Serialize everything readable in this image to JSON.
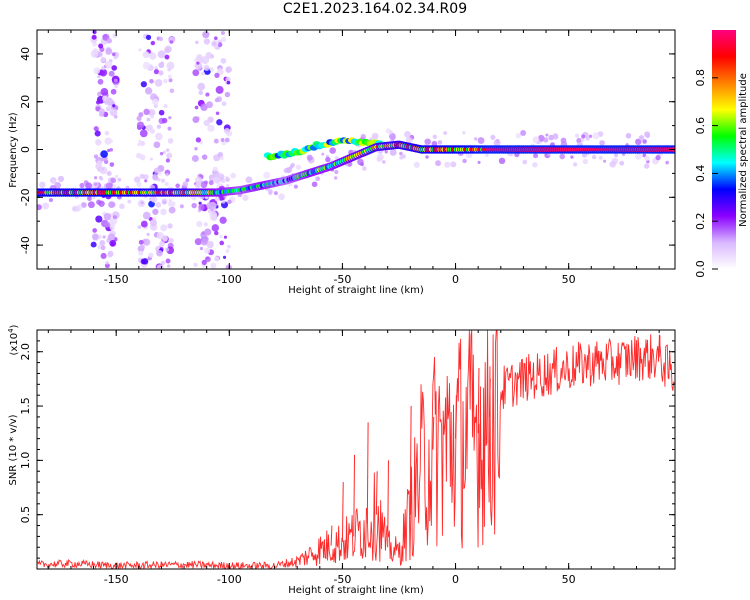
{
  "title": "C2E1.2023.164.02.34.R09",
  "chart_data": [
    {
      "type": "heatmap",
      "xlabel": "Height of straight line (km)",
      "ylabel": "Frequency (Hz)",
      "xlim": [
        -185,
        97
      ],
      "ylim": [
        -50,
        50
      ],
      "x_ticks": [
        "-150",
        "-100",
        "-50",
        "0",
        "50"
      ],
      "y_ticks": [
        "-40",
        "-20",
        "0",
        "20",
        "40"
      ],
      "colorbar": {
        "label": "Normalized spectral amplitude",
        "range": [
          0,
          1
        ],
        "ticks": [
          "0.0",
          "0.2",
          "0.4",
          "0.6",
          "0.8"
        ],
        "colors": [
          "#ffffff",
          "#d9b8ff",
          "#8a00ff",
          "#0000ff",
          "#00ffff",
          "#00ff00",
          "#ffff00",
          "#ff8000",
          "#ff0000",
          "#ff0080"
        ]
      },
      "ridge": [
        {
          "x": -185,
          "y": -18,
          "amp": 0.95
        },
        {
          "x": -160,
          "y": -18,
          "amp": 0.95
        },
        {
          "x": -140,
          "y": -18,
          "amp": 0.9
        },
        {
          "x": -120,
          "y": -18,
          "amp": 0.85
        },
        {
          "x": -105,
          "y": -18,
          "amp": 0.6
        },
        {
          "x": -95,
          "y": -17,
          "amp": 0.5
        },
        {
          "x": -85,
          "y": -15,
          "amp": 0.6
        },
        {
          "x": -75,
          "y": -13,
          "amp": 0.45
        },
        {
          "x": -65,
          "y": -10,
          "amp": 0.6
        },
        {
          "x": -55,
          "y": -7,
          "amp": 0.6
        },
        {
          "x": -45,
          "y": -3,
          "amp": 0.7
        },
        {
          "x": -35,
          "y": 1,
          "amp": 0.8
        },
        {
          "x": -25,
          "y": 2,
          "amp": 0.85
        },
        {
          "x": -15,
          "y": 0,
          "amp": 0.9
        },
        {
          "x": 0,
          "y": 0,
          "amp": 0.95
        },
        {
          "x": 15,
          "y": 0,
          "amp": 1.0
        },
        {
          "x": 97,
          "y": 0,
          "amp": 1.0
        }
      ],
      "upper_branch": [
        {
          "x": -83,
          "y": -3,
          "amp": 0.5
        },
        {
          "x": -70,
          "y": -1,
          "amp": 0.55
        },
        {
          "x": -60,
          "y": 2,
          "amp": 0.55
        },
        {
          "x": -50,
          "y": 4,
          "amp": 0.6
        },
        {
          "x": -40,
          "y": 3,
          "amp": 0.55
        },
        {
          "x": -30,
          "y": 2,
          "amp": 0.6
        }
      ],
      "noise_bands_x": [
        [
          -160,
          -150
        ],
        [
          -140,
          -125
        ],
        [
          -115,
          -100
        ]
      ]
    },
    {
      "type": "line",
      "xlabel": "Height of straight line (km)",
      "ylabel": "SNR (10 * v/v)",
      "multiplier_label": "(x10",
      "multiplier_exponent": "4",
      "multiplier_close": ")",
      "xlim": [
        -185,
        97
      ],
      "ylim": [
        0,
        22000
      ],
      "x_ticks": [
        "-150",
        "-100",
        "-50",
        "0",
        "50"
      ],
      "y_ticks": [
        "0.5",
        "1.0",
        "1.5",
        "2.0"
      ],
      "color": "#ff2a2a",
      "envelope": [
        {
          "x": -185,
          "y": 400
        },
        {
          "x": -170,
          "y": 500
        },
        {
          "x": -150,
          "y": 300
        },
        {
          "x": -120,
          "y": 400
        },
        {
          "x": -100,
          "y": 300
        },
        {
          "x": -80,
          "y": 300
        },
        {
          "x": -70,
          "y": 700
        },
        {
          "x": -60,
          "y": 1800
        },
        {
          "x": -50,
          "y": 2500
        },
        {
          "x": -45,
          "y": 3000
        },
        {
          "x": -40,
          "y": 4000
        },
        {
          "x": -35,
          "y": 5000
        },
        {
          "x": -30,
          "y": 2000
        },
        {
          "x": -25,
          "y": 1500
        },
        {
          "x": -20,
          "y": 5000
        },
        {
          "x": -15,
          "y": 9500
        },
        {
          "x": -10,
          "y": 11000
        },
        {
          "x": -5,
          "y": 11500
        },
        {
          "x": 0,
          "y": 12000
        },
        {
          "x": 5,
          "y": 12500
        },
        {
          "x": 10,
          "y": 12500
        },
        {
          "x": 15,
          "y": 14000
        },
        {
          "x": 20,
          "y": 16500
        },
        {
          "x": 25,
          "y": 17000
        },
        {
          "x": 30,
          "y": 17500
        },
        {
          "x": 40,
          "y": 18000
        },
        {
          "x": 50,
          "y": 18500
        },
        {
          "x": 60,
          "y": 19000
        },
        {
          "x": 70,
          "y": 19000
        },
        {
          "x": 80,
          "y": 19500
        },
        {
          "x": 90,
          "y": 19500
        },
        {
          "x": 97,
          "y": 17500
        }
      ],
      "spikes": [
        {
          "x": -55,
          "y": 4000
        },
        {
          "x": -50,
          "y": 8000
        },
        {
          "x": -45,
          "y": 10500
        },
        {
          "x": -39,
          "y": 13500
        },
        {
          "x": -35,
          "y": 9000
        },
        {
          "x": -30,
          "y": 10000
        },
        {
          "x": -20,
          "y": 15000
        },
        {
          "x": -10,
          "y": 14000
        },
        {
          "x": 0,
          "y": 16000
        },
        {
          "x": 10,
          "y": 18500
        },
        {
          "x": 15,
          "y": 17500
        },
        {
          "x": 90,
          "y": 21500
        }
      ]
    }
  ]
}
